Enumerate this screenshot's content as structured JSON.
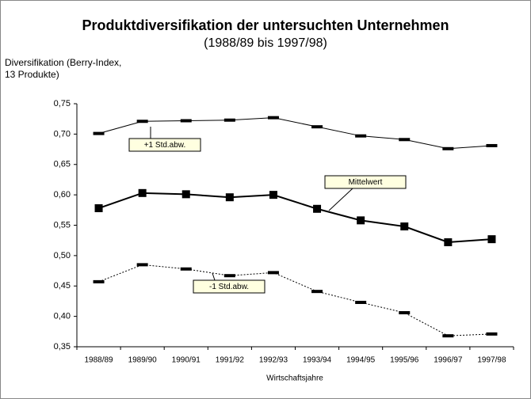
{
  "chart_data": {
    "type": "line",
    "title": "Produktdiversifikation der untersuchten Unternehmen",
    "subtitle": "(1988/89 bis 1997/98)",
    "ylabel": [
      "Diversifikation (Berry-Index,",
      "13 Produkte)"
    ],
    "xlabel": "Wirtschaftsjahre",
    "categories": [
      "1988/89",
      "1989/90",
      "1990/91",
      "1991/92",
      "1992/93",
      "1993/94",
      "1994/95",
      "1995/96",
      "1996/97",
      "1997/98"
    ],
    "series": [
      {
        "name": "+1 Std.abw.",
        "color": "#000000",
        "line_style": "solid",
        "marker": "dash",
        "values": [
          0.701,
          0.721,
          0.722,
          0.723,
          0.727,
          0.712,
          0.697,
          0.691,
          0.676,
          0.681
        ]
      },
      {
        "name": "Mittelwert",
        "color": "#000000",
        "line_style": "solid",
        "marker": "square",
        "values": [
          0.578,
          0.603,
          0.601,
          0.596,
          0.6,
          0.577,
          0.558,
          0.548,
          0.522,
          0.527
        ]
      },
      {
        "name": "-1 Std.abw.",
        "color": "#000000",
        "line_style": "dotted",
        "marker": "dash",
        "values": [
          0.457,
          0.485,
          0.478,
          0.467,
          0.472,
          0.441,
          0.423,
          0.406,
          0.368,
          0.371
        ]
      }
    ],
    "ylim": [
      0.35,
      0.75
    ],
    "yticks": [
      {
        "value": 0.35,
        "label": "0,35"
      },
      {
        "value": 0.4,
        "label": "0,40"
      },
      {
        "value": 0.45,
        "label": "0,45"
      },
      {
        "value": 0.5,
        "label": "0,50"
      },
      {
        "value": 0.55,
        "label": "0,55"
      },
      {
        "value": 0.6,
        "label": "0,60"
      },
      {
        "value": 0.65,
        "label": "0,65"
      },
      {
        "value": 0.7,
        "label": "0,70"
      },
      {
        "value": 0.75,
        "label": "0,75"
      }
    ],
    "grid": false
  }
}
